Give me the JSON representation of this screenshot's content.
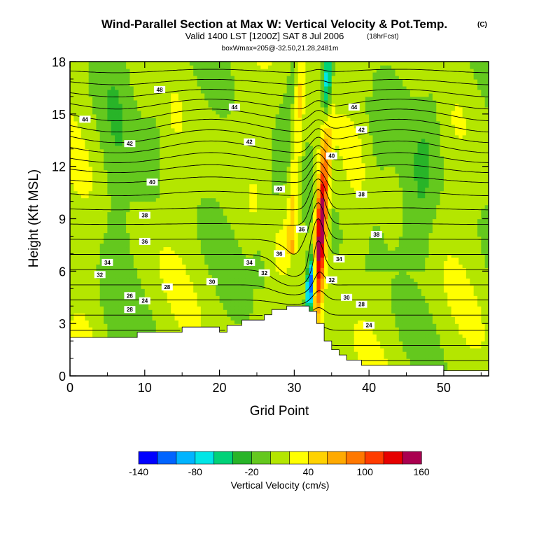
{
  "chart_data": {
    "type": "heatmap",
    "title": "Wind-Parallel Section at Max W: Vertical Velocity & Pot.Temp.",
    "title_mark": "(C)",
    "subtitle": "Valid 1400 LST [1200Z] SAT 8 Jul 2006",
    "subtitle_note": "(18hrFcst)",
    "sub_subtitle": "boxWmax=205@-32.50,21.28,2481m",
    "xlabel": "Grid Point",
    "ylabel": "Height (Kft MSL)",
    "xlim": [
      0,
      56
    ],
    "ylim": [
      0,
      18
    ],
    "x_ticks": [
      "0",
      "10",
      "20",
      "30",
      "40",
      "50"
    ],
    "y_ticks": [
      "0",
      "3",
      "6",
      "9",
      "12",
      "15",
      "18"
    ],
    "colorbar": {
      "label": "Vertical Velocity (cm/s)",
      "tick_labels": [
        "-140",
        "-80",
        "-20",
        "40",
        "100",
        "160"
      ],
      "tick_values": [
        -140,
        -80,
        -20,
        40,
        100,
        160
      ],
      "levels": [
        -140,
        -120,
        -100,
        -80,
        -60,
        -40,
        -20,
        0,
        20,
        40,
        60,
        80,
        100,
        120,
        140,
        160
      ],
      "colors": [
        "#0000ff",
        "#0064ff",
        "#00b4ff",
        "#00e6e6",
        "#00d278",
        "#28b428",
        "#64c81e",
        "#b4e600",
        "#ffff00",
        "#ffd200",
        "#ffaa00",
        "#ff7800",
        "#ff3c00",
        "#e60000",
        "#aa0050"
      ]
    },
    "contour_field": "Potential Temperature (C)",
    "contour_labels": [
      {
        "text": "48",
        "x": 12,
        "y": 16.4
      },
      {
        "text": "44",
        "x": 2,
        "y": 14.7
      },
      {
        "text": "44",
        "x": 22,
        "y": 15.4
      },
      {
        "text": "44",
        "x": 38,
        "y": 15.4
      },
      {
        "text": "42",
        "x": 8,
        "y": 13.3
      },
      {
        "text": "42",
        "x": 24,
        "y": 13.4
      },
      {
        "text": "42",
        "x": 39,
        "y": 14.1
      },
      {
        "text": "40",
        "x": 11,
        "y": 11.1
      },
      {
        "text": "40",
        "x": 28,
        "y": 10.7
      },
      {
        "text": "40",
        "x": 35,
        "y": 12.6
      },
      {
        "text": "38",
        "x": 10,
        "y": 9.2
      },
      {
        "text": "38",
        "x": 39,
        "y": 10.4
      },
      {
        "text": "38",
        "x": 41,
        "y": 8.1
      },
      {
        "text": "36",
        "x": 10,
        "y": 7.7
      },
      {
        "text": "36",
        "x": 31,
        "y": 8.4
      },
      {
        "text": "36",
        "x": 28,
        "y": 7.0
      },
      {
        "text": "34",
        "x": 5,
        "y": 6.5
      },
      {
        "text": "34",
        "x": 24,
        "y": 6.5
      },
      {
        "text": "34",
        "x": 36,
        "y": 6.7
      },
      {
        "text": "32",
        "x": 4,
        "y": 5.8
      },
      {
        "text": "32",
        "x": 26,
        "y": 5.9
      },
      {
        "text": "32",
        "x": 35,
        "y": 5.5
      },
      {
        "text": "30",
        "x": 19,
        "y": 5.4
      },
      {
        "text": "30",
        "x": 37,
        "y": 4.5
      },
      {
        "text": "28",
        "x": 13,
        "y": 5.1
      },
      {
        "text": "28",
        "x": 8,
        "y": 3.8
      },
      {
        "text": "28",
        "x": 39,
        "y": 4.1
      },
      {
        "text": "26",
        "x": 8,
        "y": 4.6
      },
      {
        "text": "24",
        "x": 10,
        "y": 4.3
      },
      {
        "text": "24",
        "x": 40,
        "y": 2.9
      }
    ],
    "terrain_x": [
      0,
      9,
      9,
      15,
      15,
      20,
      20,
      21,
      21,
      23,
      23,
      26,
      26,
      27,
      27,
      29,
      29,
      32,
      32,
      33,
      33,
      34,
      34,
      35,
      35,
      36,
      36,
      37,
      37,
      39,
      39,
      40,
      40,
      50,
      50,
      51,
      51,
      56
    ],
    "terrain_y": [
      2.2,
      2.2,
      2.5,
      2.5,
      2.8,
      2.8,
      2.5,
      2.5,
      2.9,
      2.9,
      3.2,
      3.2,
      3.5,
      3.5,
      3.8,
      3.8,
      4.0,
      4.0,
      3.7,
      3.7,
      3.0,
      3.0,
      2.0,
      2.0,
      1.5,
      1.5,
      1.2,
      1.2,
      0.9,
      0.9,
      0.6,
      0.6,
      0.6,
      0.6,
      0.3,
      0.3,
      0.3,
      0.3
    ]
  }
}
